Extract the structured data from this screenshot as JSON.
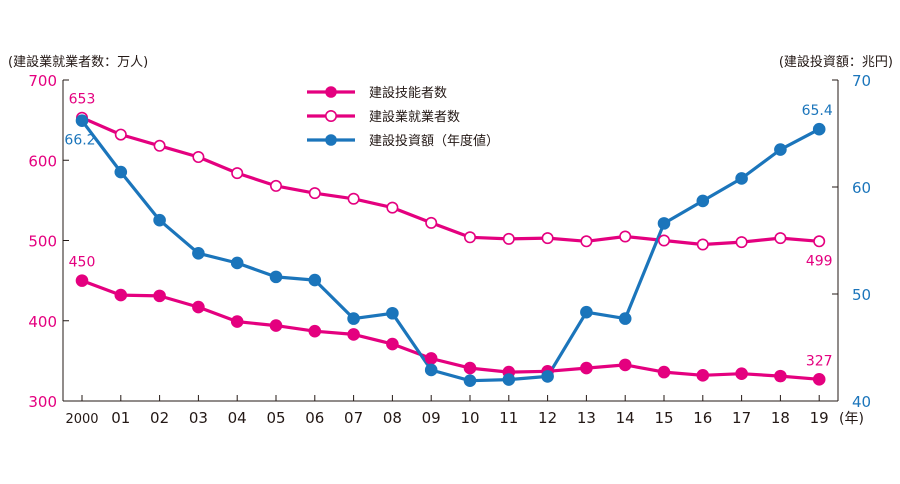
{
  "chart_data": {
    "type": "line",
    "categories": [
      "2000",
      "01",
      "02",
      "03",
      "04",
      "05",
      "06",
      "07",
      "08",
      "09",
      "10",
      "11",
      "12",
      "13",
      "14",
      "15",
      "16",
      "17",
      "18",
      "19"
    ],
    "x_unit_label": "(年)",
    "left_axis": {
      "label": "(建設業就業者数：万人)",
      "range": [
        300,
        700
      ],
      "ticks": [
        "300",
        "400",
        "500",
        "600",
        "700"
      ],
      "color": "#e4007f"
    },
    "right_axis": {
      "label": "(建設投資額：兆円)",
      "range": [
        40,
        70
      ],
      "ticks": [
        "40",
        "50",
        "60",
        "70"
      ],
      "color": "#1b75bb"
    },
    "grid": false,
    "legend_position": "top-center",
    "series": [
      {
        "name": "建設技能者数",
        "axis": "left",
        "color": "#e4007f",
        "marker": "filled",
        "values": [
          450,
          432,
          431,
          417,
          399,
          394,
          387,
          383,
          371,
          353,
          341,
          336,
          337,
          341,
          345,
          336,
          332,
          334,
          331,
          327
        ]
      },
      {
        "name": "建設業就業者数",
        "axis": "left",
        "color": "#e4007f",
        "marker": "open",
        "values": [
          653,
          632,
          618,
          604,
          584,
          568,
          559,
          552,
          541,
          522,
          504,
          502,
          503,
          499,
          505,
          500,
          495,
          498,
          503,
          499
        ]
      },
      {
        "name": "建設投資額（年度値）",
        "axis": "right",
        "color": "#1b75bb",
        "marker": "filled",
        "values": [
          66.2,
          61.4,
          56.9,
          53.8,
          52.9,
          51.6,
          51.3,
          47.7,
          48.2,
          42.9,
          41.9,
          42.0,
          42.3,
          48.3,
          47.7,
          56.6,
          58.7,
          60.8,
          63.5,
          65.4
        ]
      }
    ],
    "annotations": [
      {
        "series": 1,
        "index": 0,
        "text": "653"
      },
      {
        "series": 2,
        "index": 0,
        "text": "66.2"
      },
      {
        "series": 0,
        "index": 0,
        "text": "450"
      },
      {
        "series": 2,
        "index": 19,
        "text": "65.4"
      },
      {
        "series": 1,
        "index": 19,
        "text": "499"
      },
      {
        "series": 0,
        "index": 19,
        "text": "327"
      }
    ]
  }
}
